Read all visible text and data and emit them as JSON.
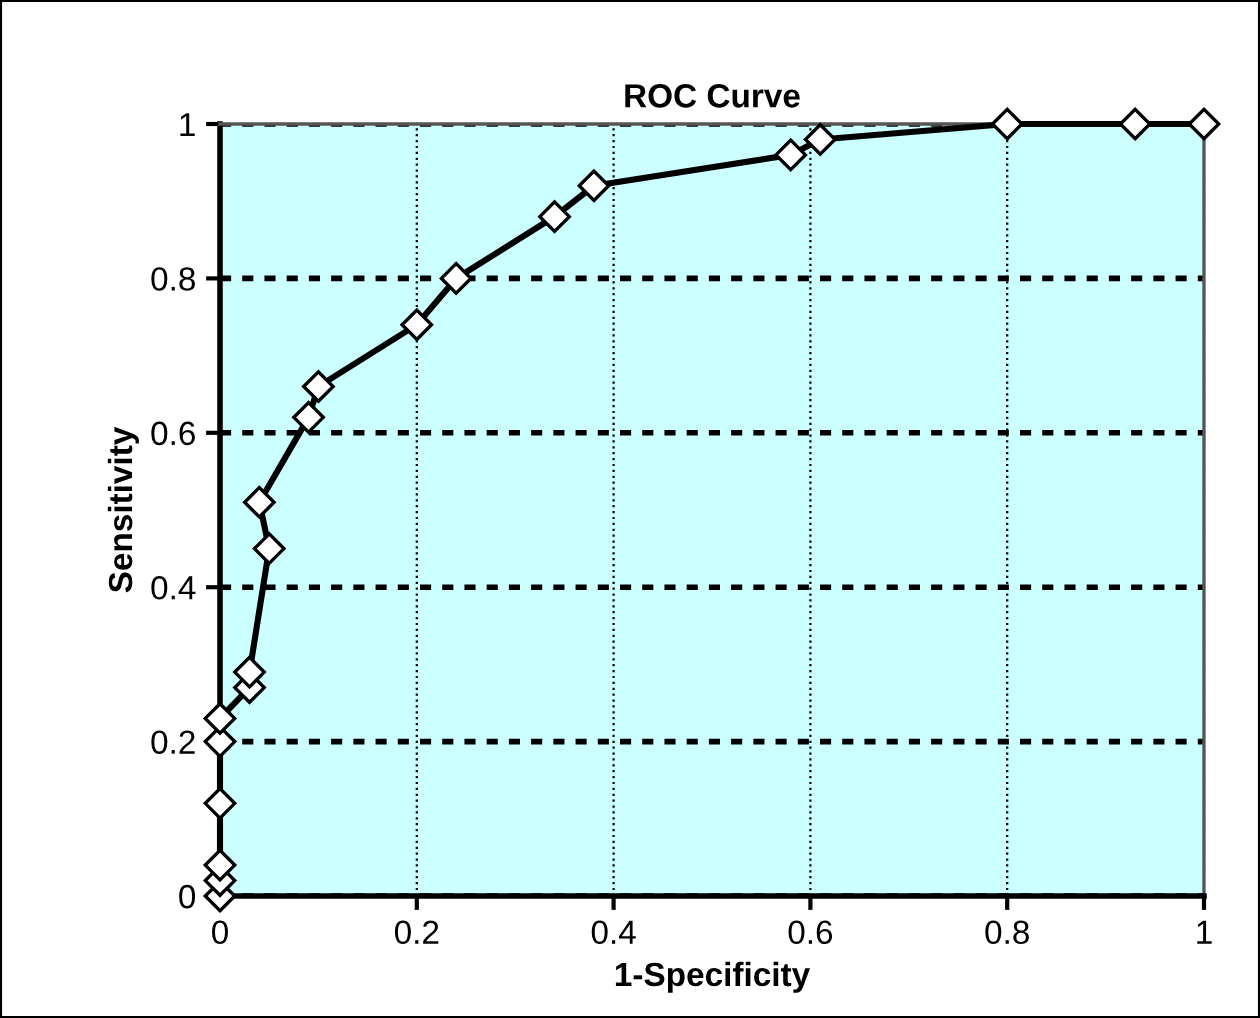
{
  "chart_data": {
    "type": "line",
    "title": "ROC Curve",
    "xlabel": "1-Specificity",
    "ylabel": "Sensitivity",
    "x": [
      0,
      0,
      0,
      0,
      0,
      0,
      0.03,
      0.03,
      0.05,
      0.04,
      0.09,
      0.1,
      0.2,
      0.24,
      0.34,
      0.38,
      0.58,
      0.61,
      0.8,
      0.93,
      1
    ],
    "series": [
      {
        "color": "#000000",
        "values": [
          0,
          0.02,
          0.04,
          0.12,
          0.2,
          0.23,
          0.27,
          0.29,
          0.45,
          0.51,
          0.62,
          0.66,
          0.74,
          0.8,
          0.88,
          0.92,
          0.96,
          0.98,
          1,
          1,
          1
        ]
      }
    ],
    "xlim": [
      0,
      1
    ],
    "ylim": [
      0,
      1
    ],
    "xticks": [
      0,
      0.2,
      0.4,
      0.6,
      0.8,
      1
    ],
    "yticks": [
      0,
      0.2,
      0.4,
      0.6,
      0.8,
      1
    ],
    "grid": true,
    "marker": "diamond",
    "line_style": "solid"
  }
}
